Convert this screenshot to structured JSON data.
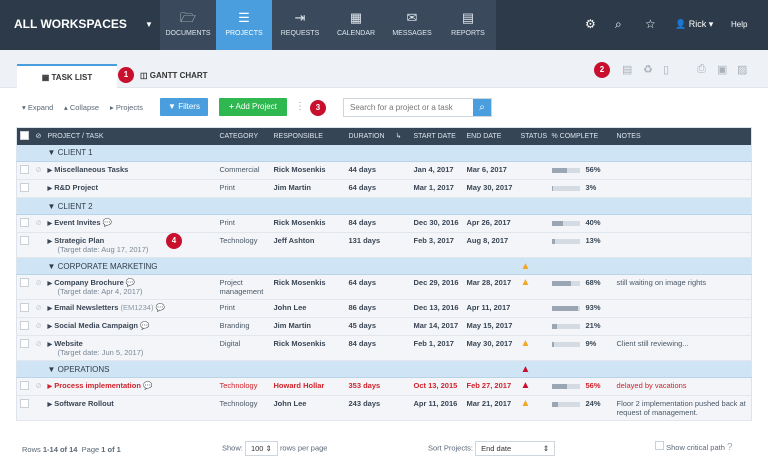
{
  "header": {
    "workspace": "ALL WORKSPACES",
    "nav": [
      {
        "label": "DOCUMENTS",
        "icon": "folder-icon",
        "glyph": "🗁"
      },
      {
        "label": "PROJECTS",
        "icon": "projects-icon",
        "glyph": "☰",
        "active": true
      },
      {
        "label": "REQUESTS",
        "icon": "sign-in-icon",
        "glyph": "⇥"
      },
      {
        "label": "CALENDAR",
        "icon": "calendar-icon",
        "glyph": "▦"
      },
      {
        "label": "MESSAGES",
        "icon": "message-icon",
        "glyph": "✉"
      },
      {
        "label": "REPORTS",
        "icon": "report-icon",
        "glyph": "▤"
      }
    ],
    "user": "Rick",
    "help": "Help"
  },
  "tabs": {
    "task_list": "TASK LIST",
    "gantt": "GANTT CHART"
  },
  "badges": [
    "1",
    "2",
    "3",
    "4"
  ],
  "toolbar": {
    "expand": "▾ Expand",
    "collapse": "▴ Collapse",
    "projects": "▸ Projects",
    "filters": "Filters",
    "add_project": "Add Project",
    "search_placeholder": "Search for a project or a task"
  },
  "columns": [
    "PROJECT / TASK",
    "CATEGORY",
    "RESPONSIBLE",
    "DURATION",
    "↳",
    "START DATE",
    "END DATE",
    "STATUS",
    "% COMPLETE",
    "NOTES"
  ],
  "groups": [
    {
      "name": "CLIENT 1",
      "rows": [
        {
          "name": "Miscellaneous Tasks",
          "category": "Commercial",
          "responsible": "Rick Mosenkis",
          "duration": "44 days",
          "start": "Jan 4, 2017",
          "end": "Mar 6, 2017",
          "complete": 56,
          "clip": true
        },
        {
          "name": "R&D Project",
          "category": "Print",
          "responsible": "Jim Martin",
          "duration": "64 days",
          "start": "Mar 1, 2017",
          "end": "May 30, 2017",
          "complete": 3
        }
      ]
    },
    {
      "name": "CLIENT 2",
      "rows": [
        {
          "name": "Event Invites",
          "category": "Print",
          "responsible": "Rick Mosenkis",
          "duration": "84 days",
          "start": "Dec 30, 2016",
          "end": "Apr 26, 2017",
          "complete": 40,
          "clip": true,
          "comment": true
        },
        {
          "name": "Strategic Plan",
          "target": "(Target date: Aug 17, 2017)",
          "category": "Technology",
          "responsible": "Jeff Ashton",
          "duration": "131 days",
          "start": "Feb 3, 2017",
          "end": "Aug 8, 2017",
          "complete": 13
        }
      ]
    },
    {
      "name": "CORPORATE MARKETING",
      "status": "warning",
      "rows": [
        {
          "name": "Company Brochure",
          "target": "(Target date: Apr 4, 2017)",
          "category": "Project management",
          "responsible": "Rick Mosenkis",
          "duration": "64 days",
          "start": "Dec 29, 2016",
          "end": "Mar 28, 2017",
          "status": "warning",
          "complete": 68,
          "notes": "still waiting on image rights",
          "clip": true,
          "comment": true
        },
        {
          "name": "Email Newsletters",
          "code": "(EM1234)",
          "category": "Print",
          "responsible": "John Lee",
          "duration": "86 days",
          "start": "Dec 13, 2016",
          "end": "Apr 11, 2017",
          "complete": 93,
          "clip": true,
          "comment": true
        },
        {
          "name": "Social Media Campaign",
          "category": "Branding",
          "responsible": "Jim Martin",
          "duration": "45 days",
          "start": "Mar 14, 2017",
          "end": "May 15, 2017",
          "complete": 21,
          "clip": true,
          "comment": true
        },
        {
          "name": "Website",
          "target": "(Target date: Jun 5, 2017)",
          "category": "Digital",
          "responsible": "Rick Mosenkis",
          "duration": "84 days",
          "start": "Feb 1, 2017",
          "end": "May 30, 2017",
          "status": "warning",
          "complete": 9,
          "notes": "Client still reviewing...",
          "clip": true
        }
      ]
    },
    {
      "name": "OPERATIONS",
      "status": "critical",
      "rows": [
        {
          "name": "Process implementation",
          "category": "Technology",
          "responsible": "Howard Hollar",
          "duration": "353 days",
          "start": "Oct 13, 2015",
          "end": "Feb 27, 2017",
          "status": "critical",
          "complete": 56,
          "notes": "delayed by vacations",
          "red": true,
          "clip": true,
          "comment": true
        },
        {
          "name": "Software Rollout",
          "category": "Technology",
          "responsible": "John Lee",
          "duration": "243 days",
          "start": "Apr 11, 2016",
          "end": "Mar 21, 2017",
          "status": "warning",
          "complete": 24,
          "notes": "Floor 2 implementation pushed back at request of management."
        }
      ]
    }
  ],
  "footer": {
    "rows_label": "Rows",
    "rows_value": "1-14 of 14",
    "page_label": "Page",
    "page_value": "1 of 1",
    "show": "Show:",
    "per_page": "100",
    "per_page_suffix": "rows per page",
    "sort_label": "Sort Projects:",
    "sort_value": "End date",
    "critical_path": "Show critical path"
  },
  "colors": {
    "nav_bg": "#2c3a49",
    "accent": "#4a9ede",
    "add": "#2fb84f",
    "warning": "#f5a623",
    "critical": "#c8102e"
  }
}
